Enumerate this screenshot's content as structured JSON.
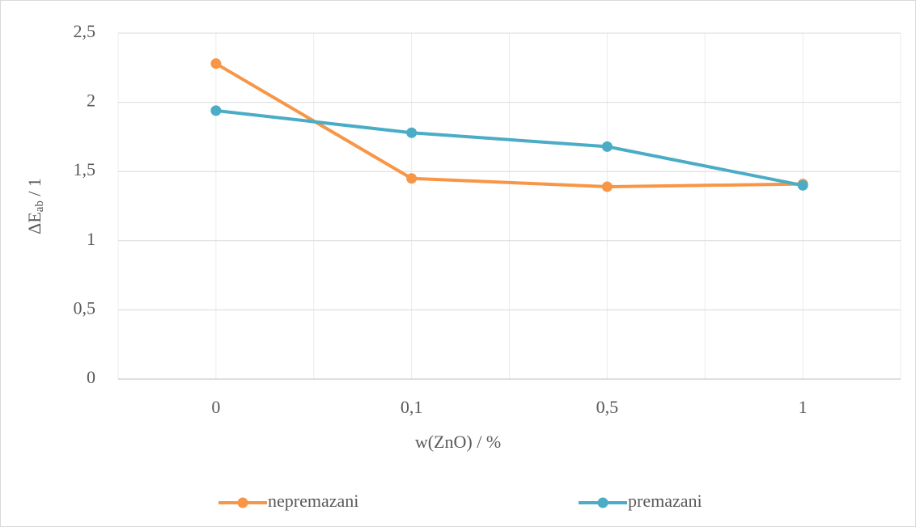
{
  "chart_data": {
    "type": "line",
    "categories": [
      "0",
      "0,1",
      "0,5",
      "1"
    ],
    "series": [
      {
        "name": "nepremazani",
        "color": "#f79646",
        "values": [
          2.28,
          1.45,
          1.39,
          1.41
        ]
      },
      {
        "name": "premazani",
        "color": "#4bacc6",
        "values": [
          1.94,
          1.78,
          1.68,
          1.4
        ]
      }
    ],
    "ylim": [
      0,
      2.5
    ],
    "yticks": [
      0,
      {
        "value": 0.5,
        "label": "0,5"
      },
      1,
      {
        "value": 1.5,
        "label": "1,5"
      },
      2,
      {
        "value": 2.5,
        "label": "2,5"
      }
    ],
    "x_label": "w(ZnO) / %",
    "y_label": {
      "main": "ΔE",
      "sub": "ab",
      "rest": " / 1"
    },
    "grid": true,
    "legend": "bottom"
  }
}
